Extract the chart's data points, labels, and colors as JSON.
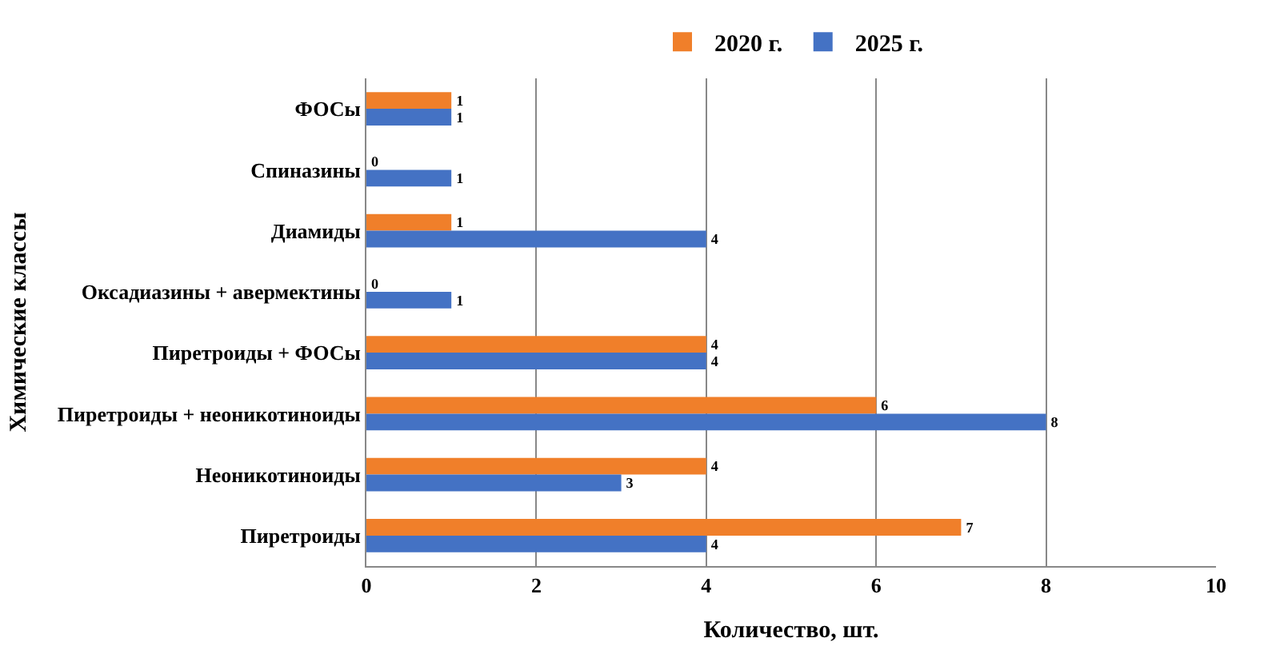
{
  "chart_data": {
    "type": "bar",
    "orientation": "horizontal",
    "xlabel": "Количество, шт.",
    "ylabel": "Химические классы",
    "categories": [
      "ФОСы",
      "Спиназины",
      "Диамиды",
      "Оксадиазины + авермектины",
      "Пиретроиды + ФОСы",
      "Пиретроиды + неоникотиноиды",
      "Неоникотиноиды",
      "Пиретроиды"
    ],
    "series": [
      {
        "name": "2020 г.",
        "color": "#f07f2a",
        "values": [
          1,
          0,
          1,
          0,
          4,
          6,
          4,
          7
        ]
      },
      {
        "name": "2025 г.",
        "color": "#4472c4",
        "values": [
          1,
          1,
          4,
          1,
          4,
          8,
          3,
          4
        ]
      }
    ],
    "xlim": [
      0,
      10
    ],
    "xticks": [
      0,
      2,
      4,
      6,
      8,
      10
    ],
    "grid": "x",
    "legend": "top",
    "data_labels": true
  }
}
